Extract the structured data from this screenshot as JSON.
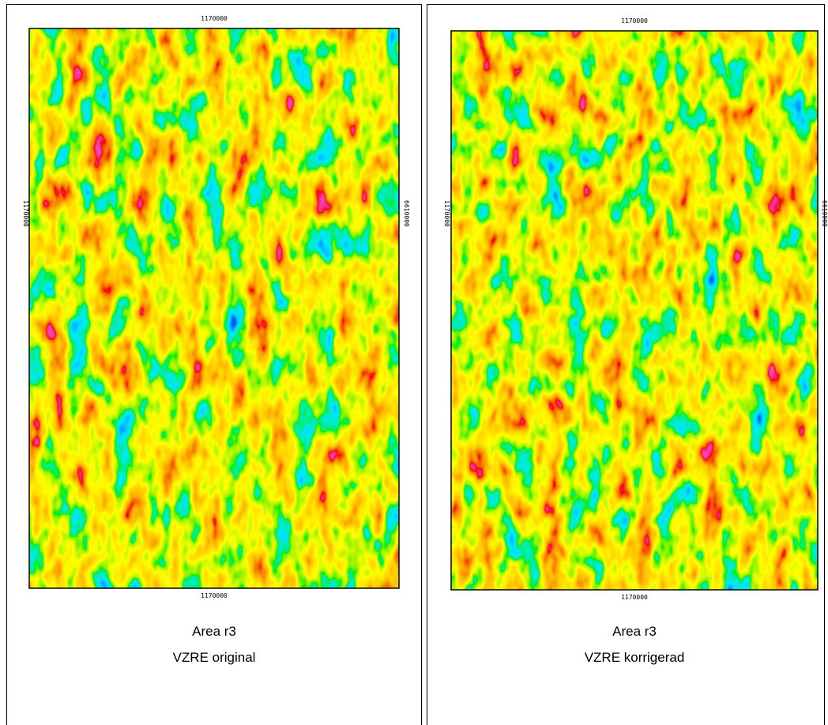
{
  "panels": [
    {
      "top_label": "1170000",
      "bottom_label": "1170000",
      "left_label": "1170000",
      "right_label": "6610000",
      "title": "Area r3",
      "subtitle": "VZRE original"
    },
    {
      "top_label": "1170000",
      "bottom_label": "1170000",
      "left_label": "1170000",
      "right_label": "6610000",
      "title": "Area r3",
      "subtitle": "VZRE korrigerad"
    }
  ]
}
